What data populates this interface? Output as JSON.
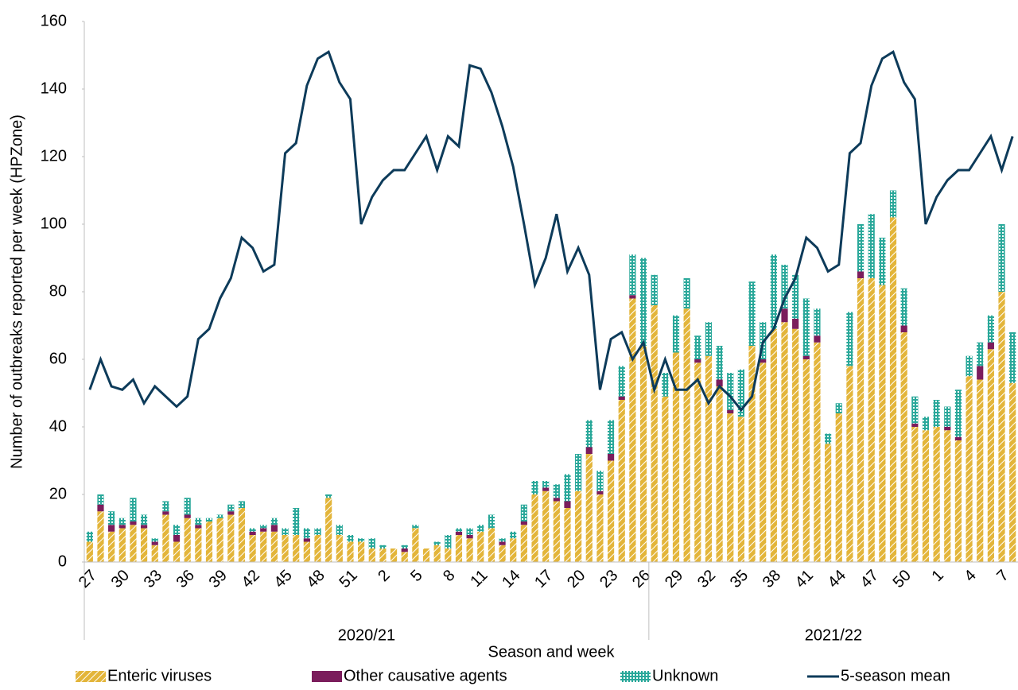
{
  "chart_data": {
    "type": "bar",
    "stacked": true,
    "y_label": "Number of outbreaks reported per week (HPZone)",
    "x_label": "Season and week",
    "categories": [
      "27",
      null,
      null,
      "30",
      null,
      null,
      "33",
      null,
      null,
      "36",
      null,
      null,
      "39",
      null,
      null,
      "42",
      null,
      null,
      "45",
      null,
      null,
      "48",
      null,
      null,
      "51",
      null,
      null,
      "2",
      null,
      null,
      "5",
      null,
      null,
      "8",
      null,
      null,
      "11",
      null,
      null,
      "14",
      null,
      null,
      "17",
      null,
      null,
      "20",
      null,
      null,
      "23",
      null,
      null,
      "26",
      null,
      null,
      "29",
      null,
      null,
      "32",
      null,
      null,
      "35",
      null,
      null,
      "38",
      null,
      null,
      "41",
      null,
      null,
      "44",
      null,
      null,
      "47",
      null,
      null,
      "50",
      null,
      null,
      "1",
      null,
      null,
      "4",
      null,
      null,
      "7",
      null
    ],
    "groups": [
      {
        "name": "2020/21",
        "size": 52
      },
      {
        "name": "2021/22",
        "size": 34
      }
    ],
    "ylim": [
      0,
      160
    ],
    "yticks": [
      0,
      20,
      40,
      60,
      80,
      100,
      120,
      140,
      160
    ],
    "grid": false,
    "series": [
      {
        "name": "Enteric viruses",
        "color": "#e3b53a",
        "type": "bar",
        "values": [
          6,
          15,
          9,
          10,
          11,
          10,
          5,
          14,
          6,
          13,
          10,
          12,
          13,
          14,
          16,
          8,
          9,
          9,
          8,
          8,
          6,
          8,
          19,
          8,
          6,
          6,
          4,
          4,
          4,
          3,
          10,
          4,
          5,
          4,
          8,
          7,
          9,
          10,
          5,
          7,
          11,
          20,
          21,
          18,
          16,
          21,
          32,
          20,
          30,
          48,
          78,
          64,
          76,
          49,
          62,
          75,
          59,
          61,
          52,
          44,
          43,
          64,
          59,
          69,
          71,
          69,
          60,
          65,
          35,
          44,
          58,
          84,
          84,
          82,
          102,
          68,
          40,
          39,
          40,
          39,
          36,
          55,
          54,
          63,
          80,
          53
        ]
      },
      {
        "name": "Other causative agents",
        "color": "#7b1d5c",
        "type": "bar",
        "values": [
          0,
          2,
          2,
          1,
          1,
          1,
          1,
          1,
          2,
          1,
          1,
          0,
          0,
          1,
          0,
          1,
          1,
          2,
          0,
          0,
          1,
          0,
          0,
          0,
          0,
          0,
          0,
          0,
          0,
          1,
          0,
          0,
          0,
          0,
          1,
          1,
          0,
          0,
          1,
          0,
          1,
          0,
          1,
          1,
          2,
          0,
          2,
          1,
          2,
          1,
          1,
          0,
          0,
          0,
          0,
          0,
          1,
          0,
          2,
          1,
          0,
          0,
          1,
          0,
          4,
          3,
          1,
          2,
          0,
          0,
          0,
          2,
          0,
          0,
          0,
          2,
          1,
          0,
          0,
          1,
          1,
          0,
          4,
          2,
          0,
          0
        ]
      },
      {
        "name": "Unknown",
        "color": "#2aa89a",
        "type": "bar",
        "values": [
          3,
          3,
          4,
          2,
          7,
          3,
          1,
          3,
          3,
          5,
          2,
          1,
          1,
          2,
          2,
          1,
          1,
          2,
          2,
          8,
          3,
          2,
          1,
          3,
          2,
          1,
          3,
          1,
          0,
          1,
          1,
          0,
          1,
          4,
          1,
          2,
          2,
          4,
          1,
          2,
          5,
          4,
          2,
          4,
          8,
          11,
          8,
          6,
          10,
          9,
          12,
          26,
          9,
          7,
          11,
          9,
          7,
          10,
          10,
          11,
          14,
          19,
          11,
          22,
          13,
          13,
          17,
          8,
          3,
          3,
          16,
          14,
          19,
          14,
          8,
          11,
          8,
          4,
          8,
          6,
          14,
          6,
          7,
          8,
          20,
          15
        ]
      },
      {
        "name": "5-season mean",
        "color": "#0d3b5a",
        "type": "line",
        "values": [
          51,
          60,
          52,
          51,
          54,
          47,
          52,
          49,
          46,
          49,
          66,
          69,
          78,
          84,
          96,
          93,
          86,
          88,
          121,
          124,
          141,
          149,
          151,
          142,
          137,
          100,
          108,
          113,
          116,
          116,
          121,
          126,
          116,
          126,
          123,
          147,
          146,
          139,
          129,
          117,
          100,
          82,
          90,
          103,
          86,
          93,
          85,
          51,
          66,
          68,
          60,
          65,
          51,
          60,
          51,
          51,
          54,
          47,
          52,
          49,
          45,
          49,
          65,
          69,
          78,
          84,
          96,
          93,
          86,
          88,
          121,
          124,
          141,
          149,
          151,
          142,
          137,
          100,
          108,
          113,
          116,
          116,
          121,
          126,
          116,
          126
        ]
      }
    ]
  }
}
